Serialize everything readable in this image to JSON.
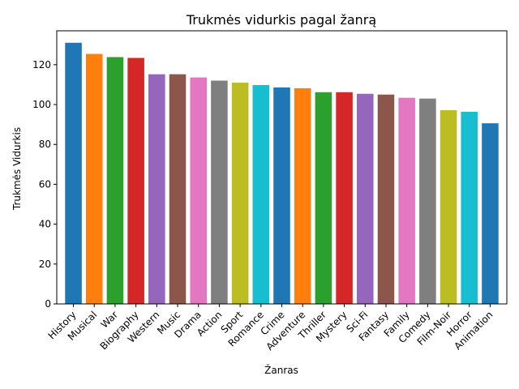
{
  "chart_data": {
    "type": "bar",
    "title": "Trukmės vidurkis pagal žanrą",
    "xlabel": "Žanras",
    "ylabel": "Trukmės Vidurkis",
    "ylim": [
      0,
      137
    ],
    "yticks": [
      0,
      20,
      40,
      60,
      80,
      100,
      120
    ],
    "grid": false,
    "categories": [
      "History",
      "Musical",
      "War",
      "Biography",
      "Western",
      "Music",
      "Drama",
      "Action",
      "Sport",
      "Romance",
      "Crime",
      "Adventure",
      "Thriller",
      "Mystery",
      "Sci-Fi",
      "Fantasy",
      "Family",
      "Comedy",
      "Film-Noir",
      "Horror",
      "Animation"
    ],
    "values": [
      131,
      125.4,
      123.8,
      123.4,
      115.2,
      115.2,
      113.6,
      112,
      111,
      109.8,
      108.6,
      108.2,
      106.2,
      106.2,
      105.4,
      105,
      103.4,
      103,
      97.2,
      96.4,
      90.6
    ],
    "colors": [
      "#1f77b4",
      "#ff7f0e",
      "#2ca02c",
      "#d62728",
      "#9467bd",
      "#8c564b",
      "#e377c2",
      "#7f7f7f",
      "#bcbd22",
      "#17becf",
      "#1f77b4",
      "#ff7f0e",
      "#2ca02c",
      "#d62728",
      "#9467bd",
      "#8c564b",
      "#e377c2",
      "#7f7f7f",
      "#bcbd22",
      "#17becf",
      "#1f77b4"
    ]
  }
}
